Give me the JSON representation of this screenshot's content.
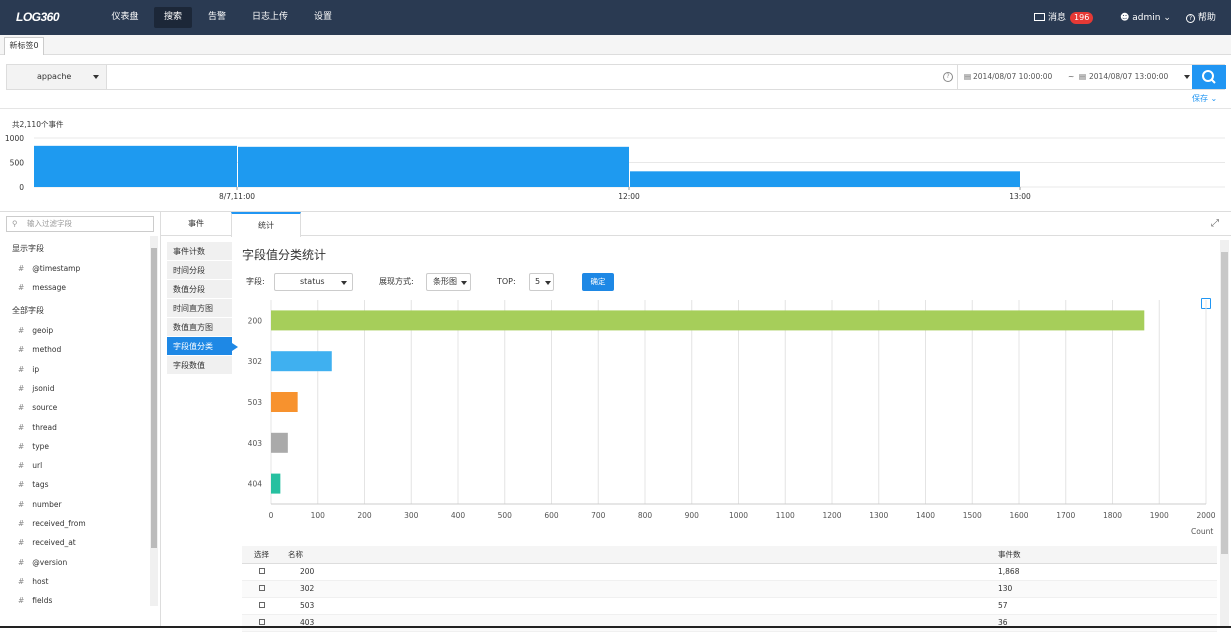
{
  "app": {
    "logo": "LOG360",
    "nav": [
      "仪表盘",
      "搜索",
      "告警",
      "日志上传",
      "设置"
    ],
    "active_nav": "搜索",
    "messages_label": "消息",
    "messages_count": "196",
    "user": "admin",
    "help": "帮助"
  },
  "tabs": [
    "新标签0"
  ],
  "search": {
    "source": "appache",
    "query": "",
    "start": "2014/08/07 10:00:00",
    "tilde": "~",
    "end": "2014/08/07 13:00:00",
    "save": "保存"
  },
  "histogram": {
    "total": "共2,110个事件",
    "y_ticks": [
      "1000",
      "500",
      "0"
    ],
    "x_ticks": [
      "8/7,11:00",
      "12:00",
      "13:00"
    ],
    "ymax": 1000,
    "bars": [
      {
        "value": 840
      },
      {
        "value": 820
      },
      {
        "value": 320
      }
    ]
  },
  "left": {
    "filter_placeholder": "输入过滤字段",
    "shown_group": "显示字段",
    "shown_fields": [
      "@timestamp",
      "message"
    ],
    "all_group": "全部字段",
    "all_fields": [
      "geoip",
      "method",
      "ip",
      "jsonid",
      "source",
      "thread",
      "type",
      "url",
      "tags",
      "number",
      "received_from",
      "received_at",
      "@version",
      "host",
      "fields"
    ]
  },
  "result_tabs": [
    "事件",
    "统计"
  ],
  "active_result_tab": "统计",
  "stat_menu": [
    "事件计数",
    "时间分段",
    "数值分段",
    "时间直方图",
    "数值直方图",
    "字段值分类",
    "字段数值"
  ],
  "active_stat": "字段值分类",
  "stats": {
    "title": "字段值分类统计",
    "field_label": "字段:",
    "field_value": "status",
    "display_label": "展现方式:",
    "display_value": "条形图",
    "top_label": "TOP:",
    "top_value": "5",
    "ok": "确定"
  },
  "chart_data": {
    "type": "bar",
    "orientation": "horizontal",
    "categories": [
      "200",
      "302",
      "503",
      "403",
      "404"
    ],
    "values": [
      1868,
      130,
      57,
      36,
      20
    ],
    "colors": [
      "#a6ce5a",
      "#3fb0f0",
      "#f7922e",
      "#aaaaaa",
      "#26c0a0"
    ],
    "xlim": [
      0,
      2000
    ],
    "x_ticks": [
      "0",
      "100",
      "200",
      "300",
      "400",
      "500",
      "600",
      "700",
      "800",
      "900",
      "1000",
      "1100",
      "1200",
      "1300",
      "1400",
      "1500",
      "1600",
      "1700",
      "1800",
      "1900",
      "2000"
    ],
    "xlabel": "Count",
    "grid": true
  },
  "table": {
    "headers": [
      "选择",
      "名称",
      "事件数"
    ],
    "rows": [
      [
        "200",
        "1,868"
      ],
      [
        "302",
        "130"
      ],
      [
        "503",
        "57"
      ],
      [
        "403",
        "36"
      ]
    ]
  }
}
